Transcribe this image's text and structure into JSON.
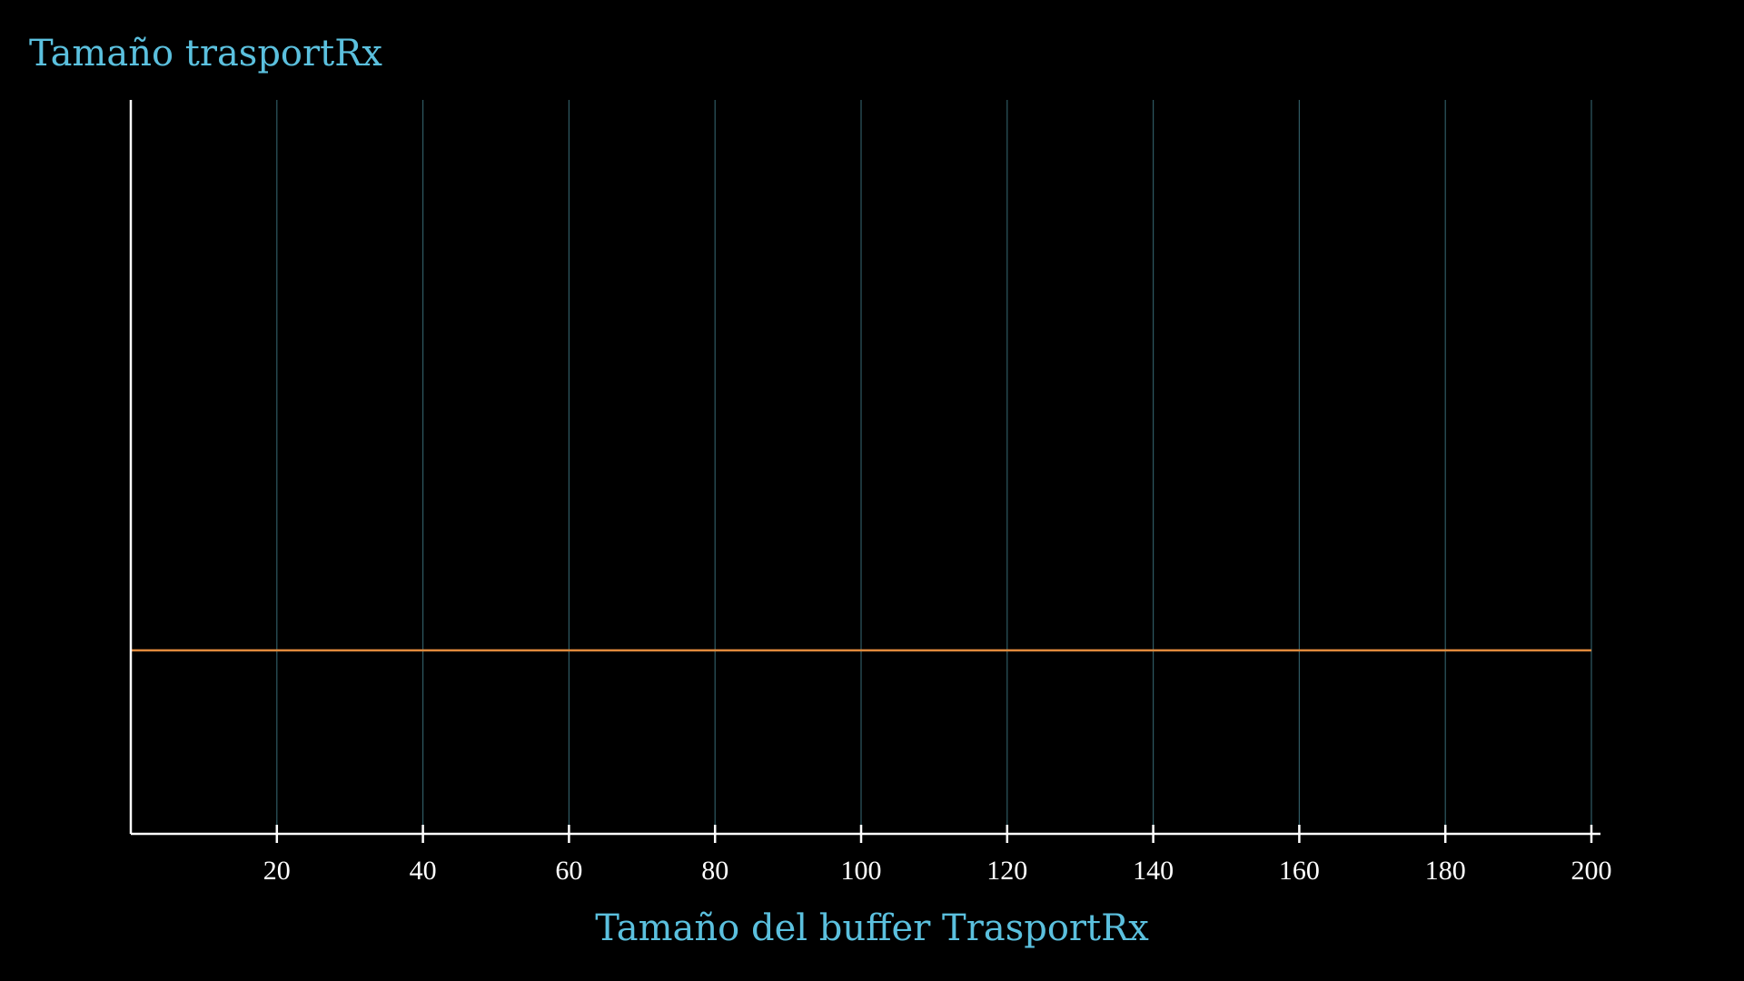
{
  "chart_data": {
    "type": "line",
    "title": "Tamaño trasportRx",
    "xlabel": "Tamaño del buffer TrasportRx",
    "ylabel": "",
    "x_ticks": [
      20,
      40,
      60,
      80,
      100,
      120,
      140,
      160,
      180,
      200
    ],
    "x_tick_labels": [
      "20",
      "40",
      "60",
      "80",
      "100",
      "120",
      "140",
      "160",
      "180",
      "200"
    ],
    "xlim": [
      0,
      200
    ],
    "ylim": [
      0,
      1
    ],
    "grid": "vertical",
    "series": [
      {
        "x": [
          0,
          200
        ],
        "y": [
          0.25,
          0.25
        ],
        "color": "#E08A3C"
      }
    ],
    "colors": {
      "background": "#000000",
      "title": "#5BC0DE",
      "axis": "#FFFFFF",
      "grid": "#2F5A63",
      "tick_label": "#FFFFFF"
    }
  }
}
